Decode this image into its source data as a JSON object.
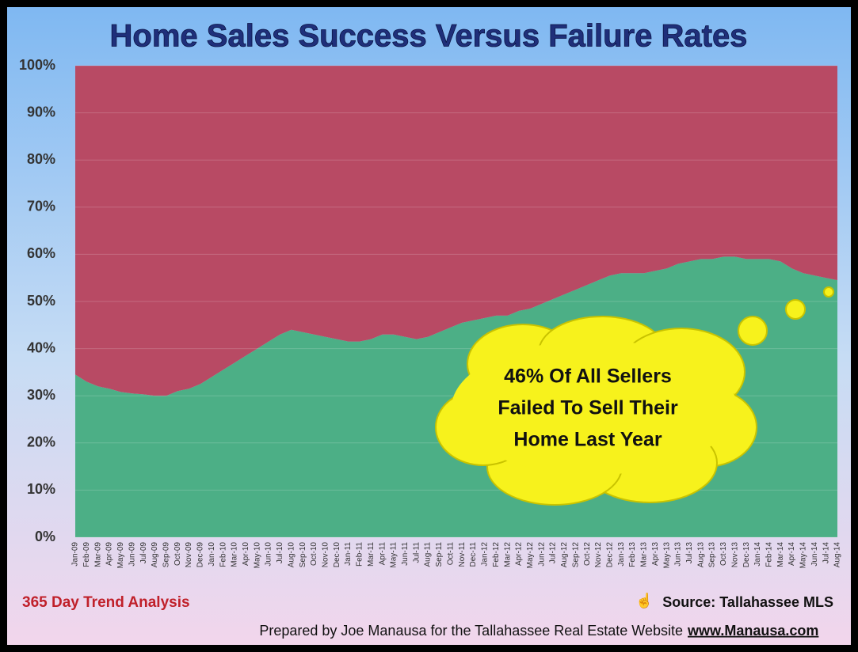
{
  "chart_data": {
    "type": "stacked-area",
    "title": "Home Sales Success Versus Failure Rates",
    "categories": [
      "Jan-09",
      "Feb-09",
      "Mar-09",
      "Apr-09",
      "May-09",
      "Jun-09",
      "Jul-09",
      "Aug-09",
      "Sep-09",
      "Oct-09",
      "Nov-09",
      "Dec-09",
      "Jan-10",
      "Feb-10",
      "Mar-10",
      "Apr-10",
      "May-10",
      "Jun-10",
      "Jul-10",
      "Aug-10",
      "Sep-10",
      "Oct-10",
      "Nov-10",
      "Dec-10",
      "Jan-11",
      "Feb-11",
      "Mar-11",
      "Apr-11",
      "May-11",
      "Jun-11",
      "Jul-11",
      "Aug-11",
      "Sep-11",
      "Oct-11",
      "Nov-11",
      "Dec-11",
      "Jan-12",
      "Feb-12",
      "Mar-12",
      "Apr-12",
      "May-12",
      "Jun-12",
      "Jul-12",
      "Aug-12",
      "Sep-12",
      "Oct-12",
      "Nov-12",
      "Dec-12",
      "Jan-13",
      "Feb-13",
      "Mar-13",
      "Apr-13",
      "May-13",
      "Jun-13",
      "Jul-13",
      "Aug-13",
      "Sep-13",
      "Oct-13",
      "Nov-13",
      "Dec-13",
      "Jan-14",
      "Feb-14",
      "Mar-14",
      "Apr-14",
      "May-14",
      "Jun-14",
      "Jul-14",
      "Aug-14"
    ],
    "series": [
      {
        "color": "#4caf86",
        "values": [
          34.5,
          33,
          32,
          31.5,
          30.8,
          30.5,
          30.3,
          30,
          30,
          31,
          31.5,
          32.5,
          34,
          35.5,
          37,
          38.5,
          40,
          41.5,
          43,
          44,
          43.5,
          43,
          42.5,
          42,
          41.5,
          41.5,
          42,
          43,
          43,
          42.5,
          42,
          42.5,
          43.5,
          44.5,
          45.5,
          46,
          46.5,
          47,
          47,
          48,
          48.5,
          49.5,
          50.5,
          51.5,
          52.5,
          53.5,
          54.5,
          55.5,
          56,
          56,
          56,
          56.5,
          57,
          58,
          58.5,
          59,
          59,
          59.5,
          59.5,
          59,
          59,
          59,
          58.5,
          57,
          56,
          55.5,
          55,
          54.5
        ]
      },
      {
        "color": "#b84a64",
        "values": [
          65.5,
          67,
          68,
          68.5,
          69.2,
          69.5,
          69.7,
          70,
          70,
          69,
          68.5,
          67.5,
          66,
          64.5,
          63,
          61.5,
          60,
          58.5,
          57,
          56,
          56.5,
          57,
          57.5,
          58,
          58.5,
          58.5,
          58,
          57,
          57,
          57.5,
          58,
          57.5,
          56.5,
          55.5,
          54.5,
          54,
          53.5,
          53,
          53,
          52,
          51.5,
          50.5,
          49.5,
          48.5,
          47.5,
          46.5,
          45.5,
          44.5,
          44,
          44,
          44,
          43.5,
          43,
          42,
          41.5,
          41,
          41,
          40.5,
          40.5,
          41,
          41,
          41,
          41.5,
          43,
          44,
          44.5,
          45,
          45.5
        ]
      }
    ],
    "ylim": [
      0,
      100
    ],
    "yticks": [
      {
        "value": 0,
        "label": "0%"
      },
      {
        "value": 10,
        "label": "10%"
      },
      {
        "value": 20,
        "label": "20%"
      },
      {
        "value": 30,
        "label": "30%"
      },
      {
        "value": 40,
        "label": "40%"
      },
      {
        "value": 50,
        "label": "50%"
      },
      {
        "value": 60,
        "label": "60%"
      },
      {
        "value": 70,
        "label": "70%"
      },
      {
        "value": 80,
        "label": "80%"
      },
      {
        "value": 90,
        "label": "90%"
      },
      {
        "value": 100,
        "label": "100%"
      }
    ],
    "grid": true,
    "annotation": [
      "46% Of All Sellers",
      "Failed To Sell Their",
      "Home Last Year"
    ],
    "subtitle": "365 Day Trend Analysis",
    "source": "Source: Tallahassee MLS",
    "credit": "Prepared by Joe Manausa for the Tallahassee Real Estate Website",
    "website": "www.Manausa.com"
  }
}
